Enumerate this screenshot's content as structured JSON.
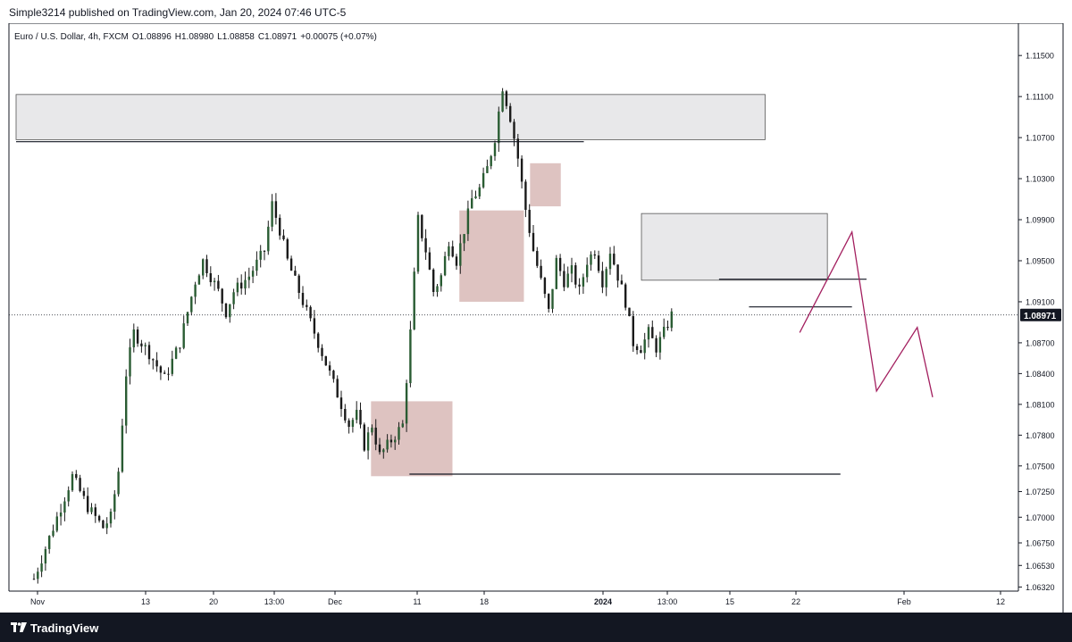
{
  "header": {
    "published": "Simple3214 published on TradingView.com, Jan 20, 2024 07:46 UTC-5"
  },
  "footer": {
    "brand": "TradingView",
    "brand_icon": "tradingview-logo-icon"
  },
  "colors": {
    "bull": "#2a5c33",
    "bear": "#1a1a1a",
    "wick": "#1a1a1a",
    "supply_zone": "#e8e8ea",
    "ob_zone": "#d8b9b6",
    "projection": "#a31f5f",
    "price_tag_bg": "#131722",
    "grid_border": "#131722"
  },
  "chart_data": {
    "type": "candlestick",
    "symbol": "Euro / U.S. Dollar, 4h, FXCM",
    "ohlc_label": {
      "o": "O1.08896",
      "h": "H1.08980",
      "l": "L1.08858",
      "c": "C1.08971",
      "change": "+0.00075 (+0.07%)"
    },
    "last_price": "1.08971",
    "y_ticks": [
      "1.11500",
      "1.11100",
      "1.10700",
      "1.10300",
      "1.09900",
      "1.09500",
      "1.09100",
      "1.08700",
      "1.08400",
      "1.08100",
      "1.07800",
      "1.07500",
      "1.07250",
      "1.07000",
      "1.06750",
      "1.06530",
      "1.06320"
    ],
    "x_ticks": [
      "Nov",
      "13",
      "20",
      "13:00",
      "Dec",
      "11",
      "18",
      "2024",
      "13:00",
      "15",
      "22",
      "Feb",
      "12"
    ],
    "ylim": [
      1.0628,
      1.1178
    ],
    "grid": false,
    "price_path": [
      [
        0,
        1.064
      ],
      [
        3,
        1.07
      ],
      [
        5,
        1.074
      ],
      [
        7,
        1.071
      ],
      [
        9,
        1.069
      ],
      [
        10,
        1.07
      ],
      [
        11,
        1.0745
      ],
      [
        12,
        1.084
      ],
      [
        13,
        1.088
      ],
      [
        15,
        1.086
      ],
      [
        17,
        1.0835
      ],
      [
        19,
        1.087
      ],
      [
        20,
        1.09
      ],
      [
        21,
        1.093
      ],
      [
        22,
        1.095
      ],
      [
        24,
        1.092
      ],
      [
        25,
        1.09
      ],
      [
        26,
        1.092
      ],
      [
        28,
        1.0935
      ],
      [
        30,
        1.096
      ],
      [
        31,
        1.1005
      ],
      [
        32,
        1.098
      ],
      [
        33,
        1.095
      ],
      [
        35,
        1.091
      ],
      [
        37,
        1.087
      ],
      [
        38,
        1.085
      ],
      [
        39,
        1.083
      ],
      [
        40,
        1.081
      ],
      [
        41,
        1.079
      ],
      [
        42,
        1.08
      ],
      [
        43,
        1.077
      ],
      [
        44,
        1.079
      ],
      [
        45,
        1.076
      ],
      [
        46,
        1.077
      ],
      [
        47,
        1.078
      ],
      [
        48,
        1.079
      ],
      [
        49,
        1.088
      ],
      [
        50,
        1.099
      ],
      [
        51,
        1.096
      ],
      [
        52,
        1.092
      ],
      [
        53,
        1.0935
      ],
      [
        54,
        1.097
      ],
      [
        55,
        1.095
      ],
      [
        56,
        1.098
      ],
      [
        57,
        1.101
      ],
      [
        58,
        1.102
      ],
      [
        59,
        1.104
      ],
      [
        60,
        1.107
      ],
      [
        61,
        1.112
      ],
      [
        62,
        1.109
      ],
      [
        63,
        1.105
      ],
      [
        64,
        1.1
      ],
      [
        65,
        1.096
      ],
      [
        66,
        1.093
      ],
      [
        67,
        1.09
      ],
      [
        68,
        1.095
      ],
      [
        69,
        1.093
      ],
      [
        70,
        1.094
      ],
      [
        71,
        1.092
      ],
      [
        72,
        1.095
      ],
      [
        73,
        1.096
      ],
      [
        74,
        1.093
      ],
      [
        75,
        1.096
      ],
      [
        76,
        1.0935
      ],
      [
        77,
        1.091
      ],
      [
        78,
        1.087
      ],
      [
        79,
        1.0865
      ],
      [
        80,
        1.088
      ],
      [
        81,
        1.0865
      ],
      [
        82,
        1.088
      ],
      [
        83,
        1.0897
      ]
    ],
    "zones": [
      {
        "name": "supply-zone-high",
        "kind": "supply",
        "t0": 0,
        "t1": 97.5,
        "y0": 1.1112,
        "y1": 1.1068
      },
      {
        "name": "supply-zone-mid",
        "kind": "supply",
        "t0": 81.4,
        "t1": 105.6,
        "y0": 1.0996,
        "y1": 1.0931
      },
      {
        "name": "order-block-low",
        "kind": "ob",
        "t0": 46.2,
        "t1": 56.8,
        "y0": 1.0813,
        "y1": 1.074
      },
      {
        "name": "order-block-mid",
        "kind": "ob",
        "t0": 57.7,
        "t1": 66.1,
        "y0": 1.0999,
        "y1": 1.091
      },
      {
        "name": "order-block-high",
        "kind": "ob",
        "t0": 66.9,
        "t1": 70.9,
        "y0": 1.1045,
        "y1": 1.1003
      }
    ],
    "levels": [
      {
        "name": "support-line-low",
        "t0": 51.2,
        "t1": 107.3,
        "y": 1.0742
      },
      {
        "name": "resistance-line-mid",
        "t0": 91.5,
        "t1": 110.7,
        "y": 1.0932
      },
      {
        "name": "resistance-line-short",
        "t0": 95.4,
        "t1": 108.8,
        "y": 1.0905
      },
      {
        "name": "upper-zone-bottom-line",
        "t0": 0,
        "t1": 73.9,
        "y": 1.1066
      }
    ],
    "projection": [
      [
        102,
        1.088
      ],
      [
        108.8,
        1.0978
      ],
      [
        112,
        1.0823
      ],
      [
        117.3,
        1.0885
      ],
      [
        119.3,
        1.0817
      ]
    ]
  }
}
